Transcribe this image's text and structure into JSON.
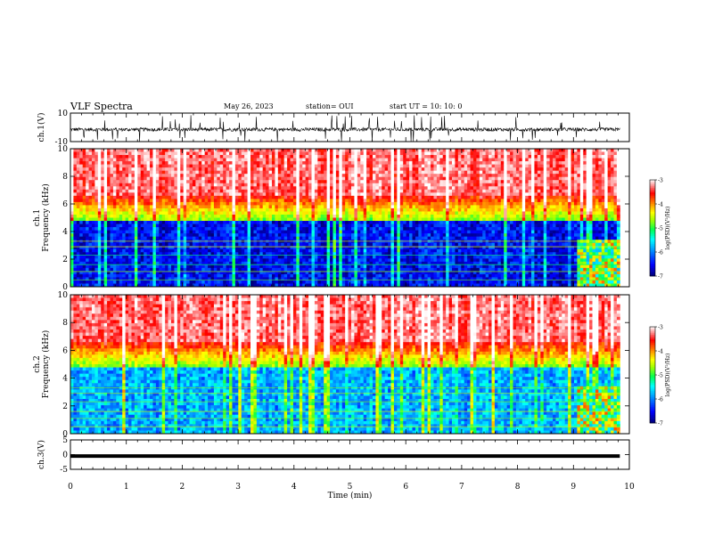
{
  "header": {
    "title": "VLF Spectra",
    "date": "May 26, 2023",
    "station": "station= OUI",
    "start": "start  UT  =   10: 10: 0"
  },
  "chart_data": [
    {
      "type": "line",
      "name": "ch1-waveform",
      "ylabel": "ch.1(V)",
      "ylim": [
        -10,
        10
      ],
      "yticks": [
        "10",
        "-10"
      ],
      "xlim": [
        0,
        10
      ],
      "baseline": -1.5,
      "noise_amplitude": 2.5,
      "data_end_min": 9.83
    },
    {
      "type": "heatmap",
      "name": "ch1-spectrogram",
      "ylabel": "ch.1 Frequency (kHz)",
      "ylabel_lines": [
        "ch.1",
        "Frequency (kHz)"
      ],
      "ylim": [
        0,
        10
      ],
      "yticks": [
        "0",
        "2",
        "4",
        "6",
        "8",
        "10"
      ],
      "xlim": [
        0,
        10
      ],
      "data_end_min": 9.83,
      "colorbar": {
        "label": "log(PSD)(V²/Hz)",
        "range": [
          -7,
          -3
        ],
        "ticks": [
          "-3",
          "-4",
          "-5",
          "-6",
          "-7"
        ]
      }
    },
    {
      "type": "heatmap",
      "name": "ch2-spectrogram",
      "ylabel": "ch.2 Frequency (kHz)",
      "ylabel_lines": [
        "ch.2",
        "Frequency (kHz)"
      ],
      "ylim": [
        0,
        10
      ],
      "yticks": [
        "0",
        "2",
        "4",
        "6",
        "8",
        "10"
      ],
      "xlim": [
        0,
        10
      ],
      "data_end_min": 9.83,
      "colorbar": {
        "label": "log(PSD)(V²/Hz)",
        "range": [
          -7,
          -3
        ],
        "ticks": [
          "-3",
          "-4",
          "-5",
          "-6",
          "-7"
        ]
      }
    },
    {
      "type": "line",
      "name": "ch3-signal",
      "ylabel": "ch.3(V)",
      "ylim": [
        -5,
        5
      ],
      "yticks": [
        "5",
        "0",
        "-5"
      ],
      "xlim": [
        0,
        10
      ],
      "value": -0.5,
      "data_end_min": 9.83,
      "xlabel": "Time (min)",
      "xticks": [
        "0",
        "1",
        "2",
        "3",
        "4",
        "5",
        "6",
        "7",
        "8",
        "9",
        "10"
      ]
    }
  ],
  "colors": {
    "psd_scale": [
      "#000078",
      "#0000ff",
      "#00a0ff",
      "#00ffff",
      "#00ff50",
      "#a0ff00",
      "#ffff00",
      "#ff8000",
      "#ff0000",
      "#ffffff"
    ]
  }
}
